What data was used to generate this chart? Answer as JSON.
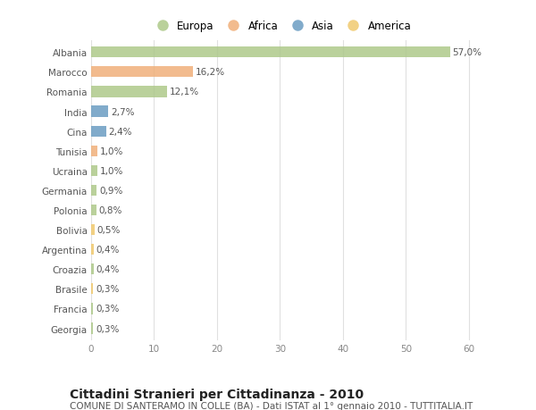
{
  "countries": [
    "Albania",
    "Marocco",
    "Romania",
    "India",
    "Cina",
    "Tunisia",
    "Ucraina",
    "Germania",
    "Polonia",
    "Bolivia",
    "Argentina",
    "Croazia",
    "Brasile",
    "Francia",
    "Georgia"
  ],
  "values": [
    57.0,
    16.2,
    12.1,
    2.7,
    2.4,
    1.0,
    1.0,
    0.9,
    0.8,
    0.5,
    0.4,
    0.4,
    0.3,
    0.3,
    0.3
  ],
  "labels": [
    "57,0%",
    "16,2%",
    "12,1%",
    "2,7%",
    "2,4%",
    "1,0%",
    "1,0%",
    "0,9%",
    "0,8%",
    "0,5%",
    "0,4%",
    "0,4%",
    "0,3%",
    "0,3%",
    "0,3%"
  ],
  "continent": [
    "Europa",
    "Africa",
    "Europa",
    "Asia",
    "Asia",
    "Africa",
    "Europa",
    "Europa",
    "Europa",
    "America",
    "America",
    "Europa",
    "America",
    "Europa",
    "Europa"
  ],
  "colors": {
    "Europa": "#aec98a",
    "Africa": "#f0b07a",
    "Asia": "#6b9dc2",
    "America": "#f0c96e"
  },
  "legend_order": [
    "Europa",
    "Africa",
    "Asia",
    "America"
  ],
  "legend_colors": [
    "#aec98a",
    "#f0b07a",
    "#6b9dc2",
    "#f0c96e"
  ],
  "bg_color": "#ffffff",
  "grid_color": "#e0e0e0",
  "bar_alpha": 0.85,
  "title": "Cittadini Stranieri per Cittadinanza - 2010",
  "subtitle": "COMUNE DI SANTERAMO IN COLLE (BA) - Dati ISTAT al 1° gennaio 2010 - TUTTITALIA.IT",
  "xlabel_vals": [
    0,
    10,
    20,
    30,
    40,
    50,
    60
  ],
  "xlim": [
    0,
    63
  ],
  "title_fontsize": 10,
  "subtitle_fontsize": 7.5,
  "label_fontsize": 7.5,
  "tick_fontsize": 7.5,
  "legend_fontsize": 8.5,
  "bar_height": 0.55
}
